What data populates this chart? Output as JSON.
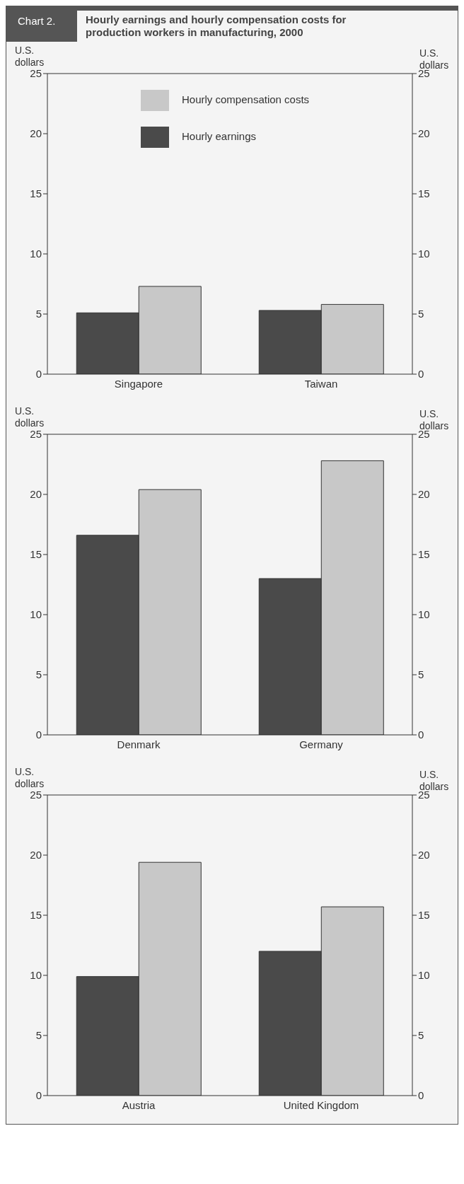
{
  "chart_data": [
    {
      "type": "bar",
      "title": "Hourly earnings and hourly compensation costs for production workers in manufacturing, 2000",
      "annotations": [
        "Chart 2."
      ],
      "ylabel": "U.S. dollars",
      "y2label": "U.S. dollars",
      "categories": [
        "Singapore",
        "Taiwan"
      ],
      "series": [
        {
          "name": "Hourly earnings",
          "color": "#4a4a4a",
          "values": [
            5.1,
            5.3
          ]
        },
        {
          "name": "Hourly compensation costs",
          "color": "#c8c8c8",
          "values": [
            7.3,
            5.8
          ]
        }
      ],
      "ylim": [
        0,
        25
      ],
      "yticks": [
        0,
        5,
        10,
        15,
        20,
        25
      ],
      "y2lim": [
        0,
        25
      ],
      "y2ticks": [
        0,
        5,
        10,
        15,
        20,
        25
      ],
      "legend": "top left"
    },
    {
      "type": "bar",
      "ylabel": "U.S. dollars",
      "y2label": "U.S. dollars",
      "categories": [
        "Denmark",
        "Germany"
      ],
      "series": [
        {
          "color": "#4a4a4a",
          "values": [
            16.6,
            13.0
          ]
        },
        {
          "color": "#c8c8c8",
          "values": [
            20.4,
            22.8
          ]
        }
      ],
      "ylim": [
        0,
        25
      ],
      "yticks": [
        0,
        5,
        10,
        15,
        20,
        25
      ],
      "y2lim": [
        0,
        25
      ],
      "y2ticks": [
        0,
        5,
        10,
        15,
        20,
        25
      ]
    },
    {
      "type": "bar",
      "ylabel": "U.S. dollars",
      "y2label": "U.S. dollars",
      "categories": [
        "Austria",
        "United Kingdom"
      ],
      "series": [
        {
          "color": "#4a4a4a",
          "values": [
            9.9,
            12.0
          ]
        },
        {
          "color": "#c8c8c8",
          "values": [
            19.4,
            15.7
          ]
        }
      ],
      "ylim": [
        0,
        25
      ],
      "yticks": [
        0,
        5,
        10,
        15,
        20,
        25
      ],
      "y2lim": [
        0,
        25
      ],
      "y2ticks": [
        0,
        5,
        10,
        15,
        20,
        25
      ]
    }
  ]
}
